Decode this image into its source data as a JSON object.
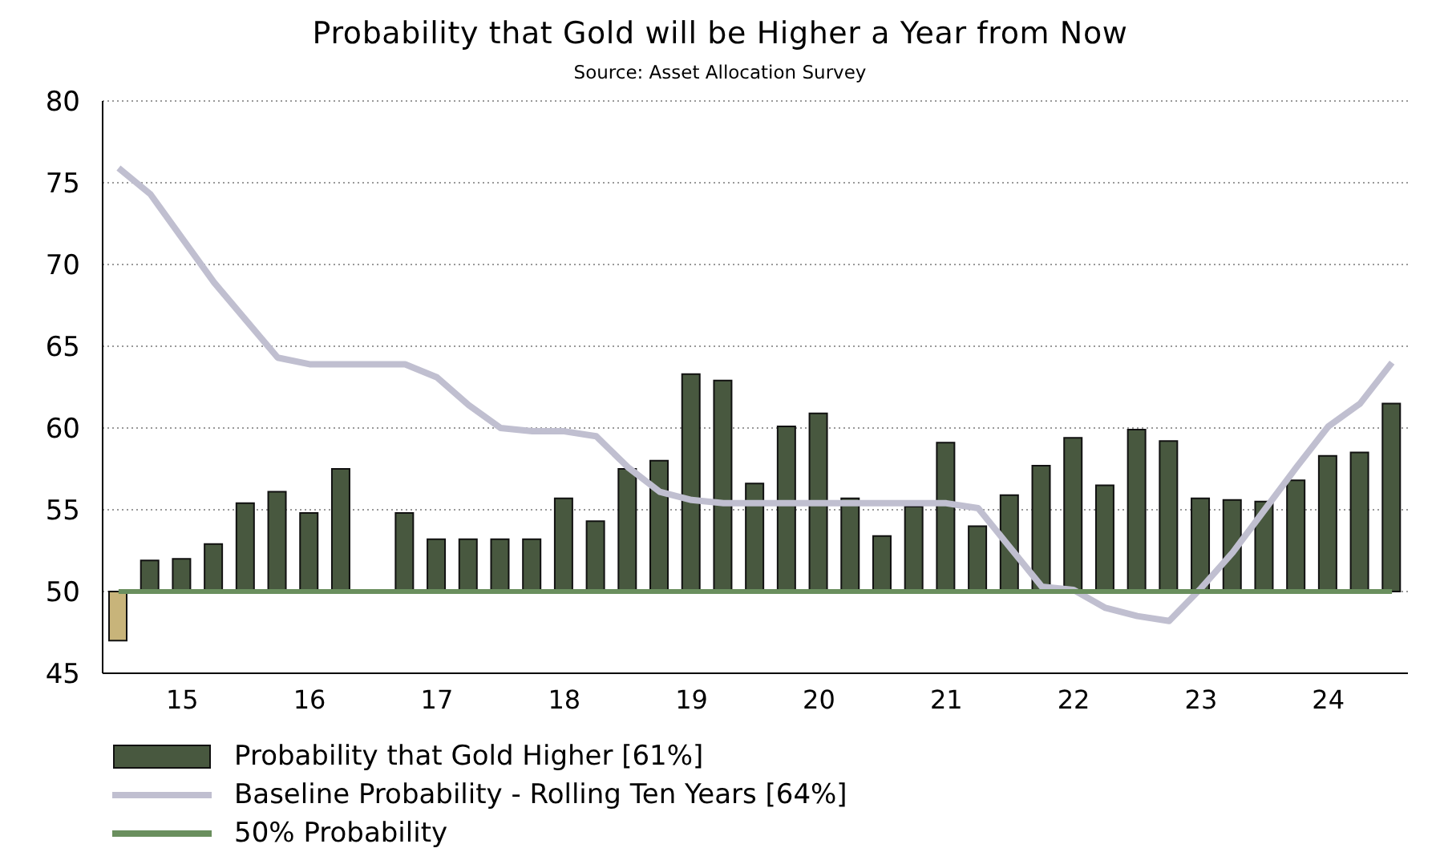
{
  "chart_data": {
    "type": "bar",
    "title": "Probability that Gold will be Higher a Year from Now",
    "subtitle": "Source: Asset Allocation Survey",
    "categories": [
      null,
      null,
      "15",
      null,
      null,
      null,
      "16",
      null,
      null,
      null,
      "17",
      null,
      null,
      null,
      "18",
      null,
      null,
      null,
      "19",
      null,
      null,
      null,
      "20",
      null,
      null,
      null,
      "21",
      null,
      null,
      null,
      "22",
      null,
      null,
      null,
      "23",
      null,
      null,
      null,
      "24",
      null,
      null
    ],
    "series": [
      {
        "name": "Probability that Gold Higher [61%]",
        "color": "#48583f",
        "colors": [
          "#c8b47a",
          "#48583f",
          "#48583f",
          "#48583f",
          "#48583f",
          "#48583f",
          "#48583f",
          "#48583f",
          "#48583f",
          "#48583f",
          "#48583f",
          "#48583f",
          "#48583f",
          "#48583f",
          "#48583f",
          "#48583f",
          "#48583f",
          "#48583f",
          "#48583f",
          "#48583f",
          "#48583f",
          "#48583f",
          "#48583f",
          "#48583f",
          "#48583f",
          "#48583f",
          "#48583f",
          "#48583f",
          "#48583f",
          "#48583f",
          "#48583f",
          "#48583f",
          "#48583f",
          "#48583f",
          "#48583f",
          "#48583f",
          "#48583f",
          "#48583f",
          "#48583f",
          "#48583f",
          "#48583f"
        ],
        "base": [
          50,
          50,
          50,
          50,
          50,
          50,
          50,
          50,
          null,
          50,
          50,
          50,
          50,
          50,
          50,
          50,
          50,
          50,
          50,
          50,
          50,
          50,
          50,
          50,
          50,
          50,
          50,
          50,
          50,
          50,
          50,
          50,
          50,
          50,
          50,
          50,
          50,
          50,
          50,
          50,
          50
        ],
        "values": [
          -3.0,
          1.9,
          2.0,
          2.9,
          5.4,
          6.1,
          4.8,
          7.5,
          null,
          4.8,
          3.2,
          3.2,
          3.2,
          3.2,
          5.7,
          4.3,
          7.5,
          8.0,
          13.3,
          12.9,
          6.6,
          10.1,
          10.9,
          5.7,
          3.4,
          5.2,
          9.1,
          4.0,
          5.9,
          7.7,
          9.4,
          6.5,
          9.9,
          9.2,
          5.7,
          5.6,
          5.5,
          6.8,
          8.3,
          8.5,
          11.5
        ]
      },
      {
        "type": "line",
        "name": "Baseline Probability - Rolling Ten Years [64%]",
        "color": "#c0bfd0",
        "values": [
          75.9,
          74.3,
          71.6,
          68.9,
          66.6,
          64.3,
          63.9,
          63.9,
          63.9,
          63.9,
          63.1,
          61.4,
          60.0,
          59.8,
          59.8,
          59.5,
          57.6,
          56.1,
          55.6,
          55.4,
          55.4,
          55.4,
          55.4,
          55.4,
          55.4,
          55.4,
          55.4,
          55.1,
          52.7,
          50.3,
          50.1,
          49.0,
          48.5,
          48.2,
          50.2,
          52.4,
          55.0,
          57.6,
          60.1,
          61.5,
          64.0
        ]
      },
      {
        "type": "line",
        "name": "50% Probability",
        "color": "#6a8f5e",
        "values": [
          50,
          50,
          50,
          50,
          50,
          50,
          50,
          50,
          50,
          50,
          50,
          50,
          50,
          50,
          50,
          50,
          50,
          50,
          50,
          50,
          50,
          50,
          50,
          50,
          50,
          50,
          50,
          50,
          50,
          50,
          50,
          50,
          50,
          50,
          50,
          50,
          50,
          50,
          50,
          50,
          50
        ]
      }
    ],
    "ylim": [
      45,
      80
    ],
    "yticks": [
      45,
      50,
      55,
      60,
      65,
      70,
      75,
      80
    ],
    "grid": "y",
    "legend": "bottom left"
  }
}
